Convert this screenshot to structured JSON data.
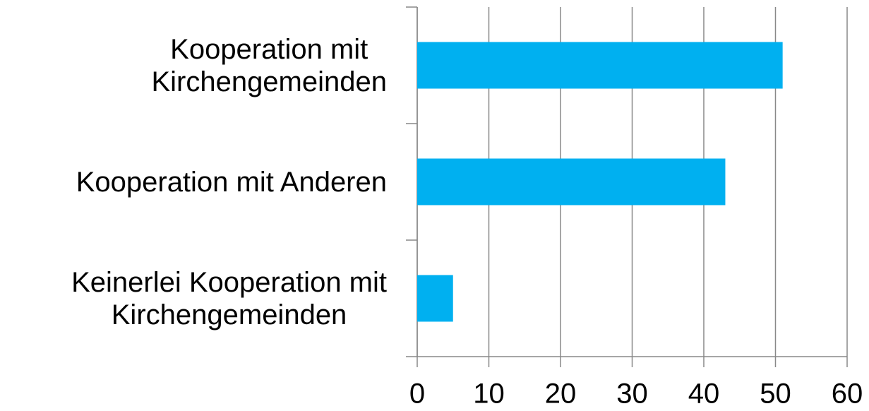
{
  "chart_data": {
    "type": "barh",
    "categories": [
      "Kooperation mit\nKirchengemeinden",
      "Kooperation mit Anderen",
      "Keinerlei Kooperation mit\nKirchengemeinden"
    ],
    "values": [
      51,
      43,
      5
    ],
    "color": "#00b0f0",
    "xlim": [
      0,
      60
    ],
    "xticks": [
      0,
      10,
      20,
      30,
      40,
      50,
      60
    ],
    "grid": true
  }
}
